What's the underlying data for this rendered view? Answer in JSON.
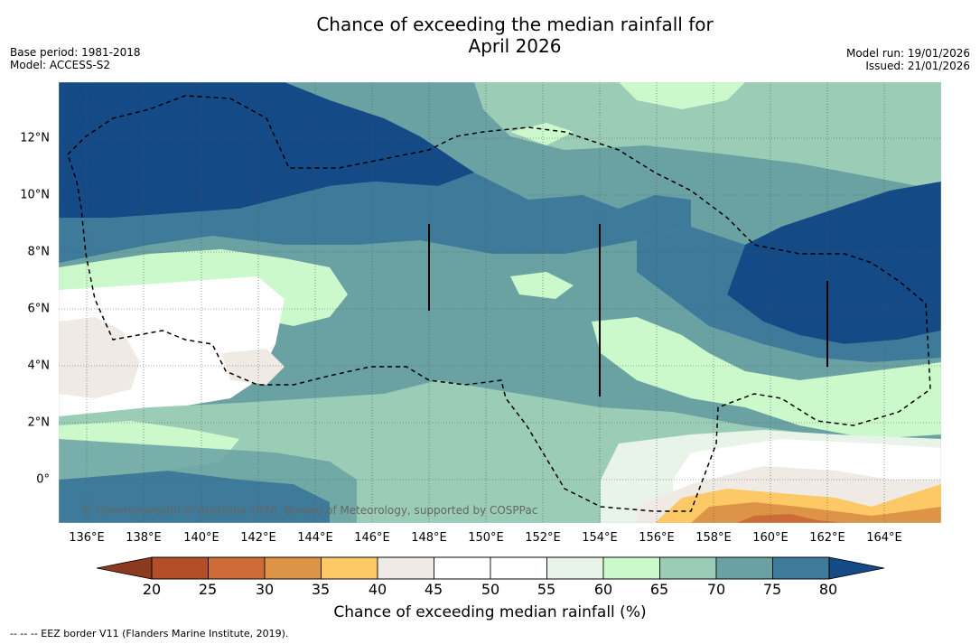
{
  "title_line1": "Chance of exceeding the median rainfall for",
  "title_line2": "April 2026",
  "base_period": "Base period: 1981-2018",
  "model": "Model: ACCESS-S2",
  "model_run": "Model run: 19/01/2026",
  "issued": "Issued: 21/01/2026",
  "copyright": "© Commonwealth of Australia 2026, Bureau of Meteorology, supported by COSPPac",
  "lon_labels": [
    "136°E",
    "138°E",
    "140°E",
    "142°E",
    "144°E",
    "146°E",
    "148°E",
    "150°E",
    "152°E",
    "154°E",
    "156°E",
    "158°E",
    "160°E",
    "162°E",
    "164°E"
  ],
  "lat_labels": [
    "12°N",
    "10°N",
    "8°N",
    "6°N",
    "4°N",
    "2°N",
    "0°"
  ],
  "colorbar": {
    "ticks": [
      "20",
      "25",
      "30",
      "35",
      "40",
      "45",
      "50",
      "55",
      "60",
      "65",
      "70",
      "75",
      "80"
    ],
    "colors": [
      "#b24e2a",
      "#cd6c36",
      "#dd9447",
      "#fdc967",
      "#efebe4",
      "#ffffff",
      "#ffffff",
      "#e9f4e8",
      "#ccf9cc",
      "#9bccb6",
      "#6aa2a4",
      "#3e7a99",
      "#144a86"
    ],
    "under_color": "#8c3a1f",
    "over_color": "#144a86",
    "label": "Chance of exceeding median rainfall (%)"
  },
  "footnote": "--  --  -- EEZ border V11 (Flanders Marine Institute, 2019)."
}
